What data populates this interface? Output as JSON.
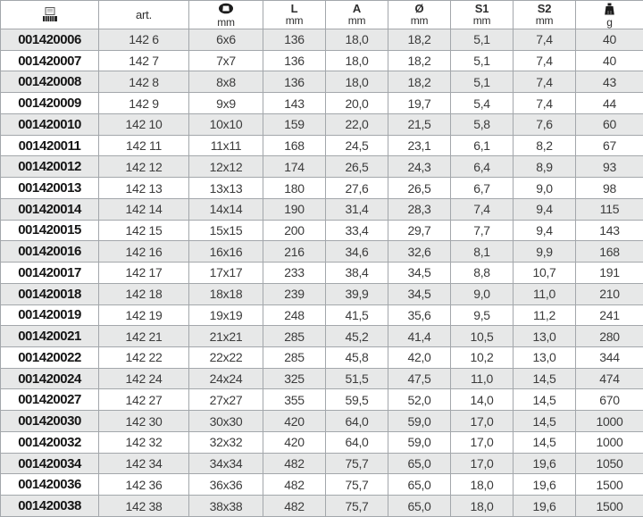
{
  "table": {
    "columns": [
      {
        "key": "ean",
        "icon": "barcode-icon",
        "label": "",
        "unit": ""
      },
      {
        "key": "art",
        "icon": "",
        "label": "art.",
        "unit": ""
      },
      {
        "key": "size",
        "icon": "socket-icon",
        "label": "",
        "unit": "mm"
      },
      {
        "key": "length",
        "icon": "",
        "label": "L",
        "unit": "mm"
      },
      {
        "key": "a",
        "icon": "",
        "label": "A",
        "unit": "mm"
      },
      {
        "key": "diameter",
        "icon": "",
        "label": "Ø",
        "unit": "mm"
      },
      {
        "key": "s1",
        "icon": "",
        "label": "S1",
        "unit": "mm"
      },
      {
        "key": "s2",
        "icon": "",
        "label": "S2",
        "unit": "mm"
      },
      {
        "key": "weight",
        "icon": "weight-icon",
        "label": "",
        "unit": "g"
      }
    ],
    "rows": [
      [
        "001420006",
        "142 6",
        "6x6",
        "136",
        "18,0",
        "18,2",
        "5,1",
        "7,4",
        "40"
      ],
      [
        "001420007",
        "142 7",
        "7x7",
        "136",
        "18,0",
        "18,2",
        "5,1",
        "7,4",
        "40"
      ],
      [
        "001420008",
        "142 8",
        "8x8",
        "136",
        "18,0",
        "18,2",
        "5,1",
        "7,4",
        "43"
      ],
      [
        "001420009",
        "142 9",
        "9x9",
        "143",
        "20,0",
        "19,7",
        "5,4",
        "7,4",
        "44"
      ],
      [
        "001420010",
        "142 10",
        "10x10",
        "159",
        "22,0",
        "21,5",
        "5,8",
        "7,6",
        "60"
      ],
      [
        "001420011",
        "142 11",
        "11x11",
        "168",
        "24,5",
        "23,1",
        "6,1",
        "8,2",
        "67"
      ],
      [
        "001420012",
        "142 12",
        "12x12",
        "174",
        "26,5",
        "24,3",
        "6,4",
        "8,9",
        "93"
      ],
      [
        "001420013",
        "142 13",
        "13x13",
        "180",
        "27,6",
        "26,5",
        "6,7",
        "9,0",
        "98"
      ],
      [
        "001420014",
        "142 14",
        "14x14",
        "190",
        "31,4",
        "28,3",
        "7,4",
        "9,4",
        "115"
      ],
      [
        "001420015",
        "142 15",
        "15x15",
        "200",
        "33,4",
        "29,7",
        "7,7",
        "9,4",
        "143"
      ],
      [
        "001420016",
        "142 16",
        "16x16",
        "216",
        "34,6",
        "32,6",
        "8,1",
        "9,9",
        "168"
      ],
      [
        "001420017",
        "142 17",
        "17x17",
        "233",
        "38,4",
        "34,5",
        "8,8",
        "10,7",
        "191"
      ],
      [
        "001420018",
        "142 18",
        "18x18",
        "239",
        "39,9",
        "34,5",
        "9,0",
        "11,0",
        "210"
      ],
      [
        "001420019",
        "142 19",
        "19x19",
        "248",
        "41,5",
        "35,6",
        "9,5",
        "11,2",
        "241"
      ],
      [
        "001420021",
        "142 21",
        "21x21",
        "285",
        "45,2",
        "41,4",
        "10,5",
        "13,0",
        "280"
      ],
      [
        "001420022",
        "142 22",
        "22x22",
        "285",
        "45,8",
        "42,0",
        "10,2",
        "13,0",
        "344"
      ],
      [
        "001420024",
        "142 24",
        "24x24",
        "325",
        "51,5",
        "47,5",
        "11,0",
        "14,5",
        "474"
      ],
      [
        "001420027",
        "142 27",
        "27x27",
        "355",
        "59,5",
        "52,0",
        "14,0",
        "14,5",
        "670"
      ],
      [
        "001420030",
        "142 30",
        "30x30",
        "420",
        "64,0",
        "59,0",
        "17,0",
        "14,5",
        "1000"
      ],
      [
        "001420032",
        "142 32",
        "32x32",
        "420",
        "64,0",
        "59,0",
        "17,0",
        "14,5",
        "1000"
      ],
      [
        "001420034",
        "142 34",
        "34x34",
        "482",
        "75,7",
        "65,0",
        "17,0",
        "19,6",
        "1050"
      ],
      [
        "001420036",
        "142 36",
        "36x36",
        "482",
        "75,7",
        "65,0",
        "18,0",
        "19,6",
        "1500"
      ],
      [
        "001420038",
        "142 38",
        "38x38",
        "482",
        "75,7",
        "65,0",
        "18,0",
        "19,6",
        "1500"
      ]
    ]
  }
}
